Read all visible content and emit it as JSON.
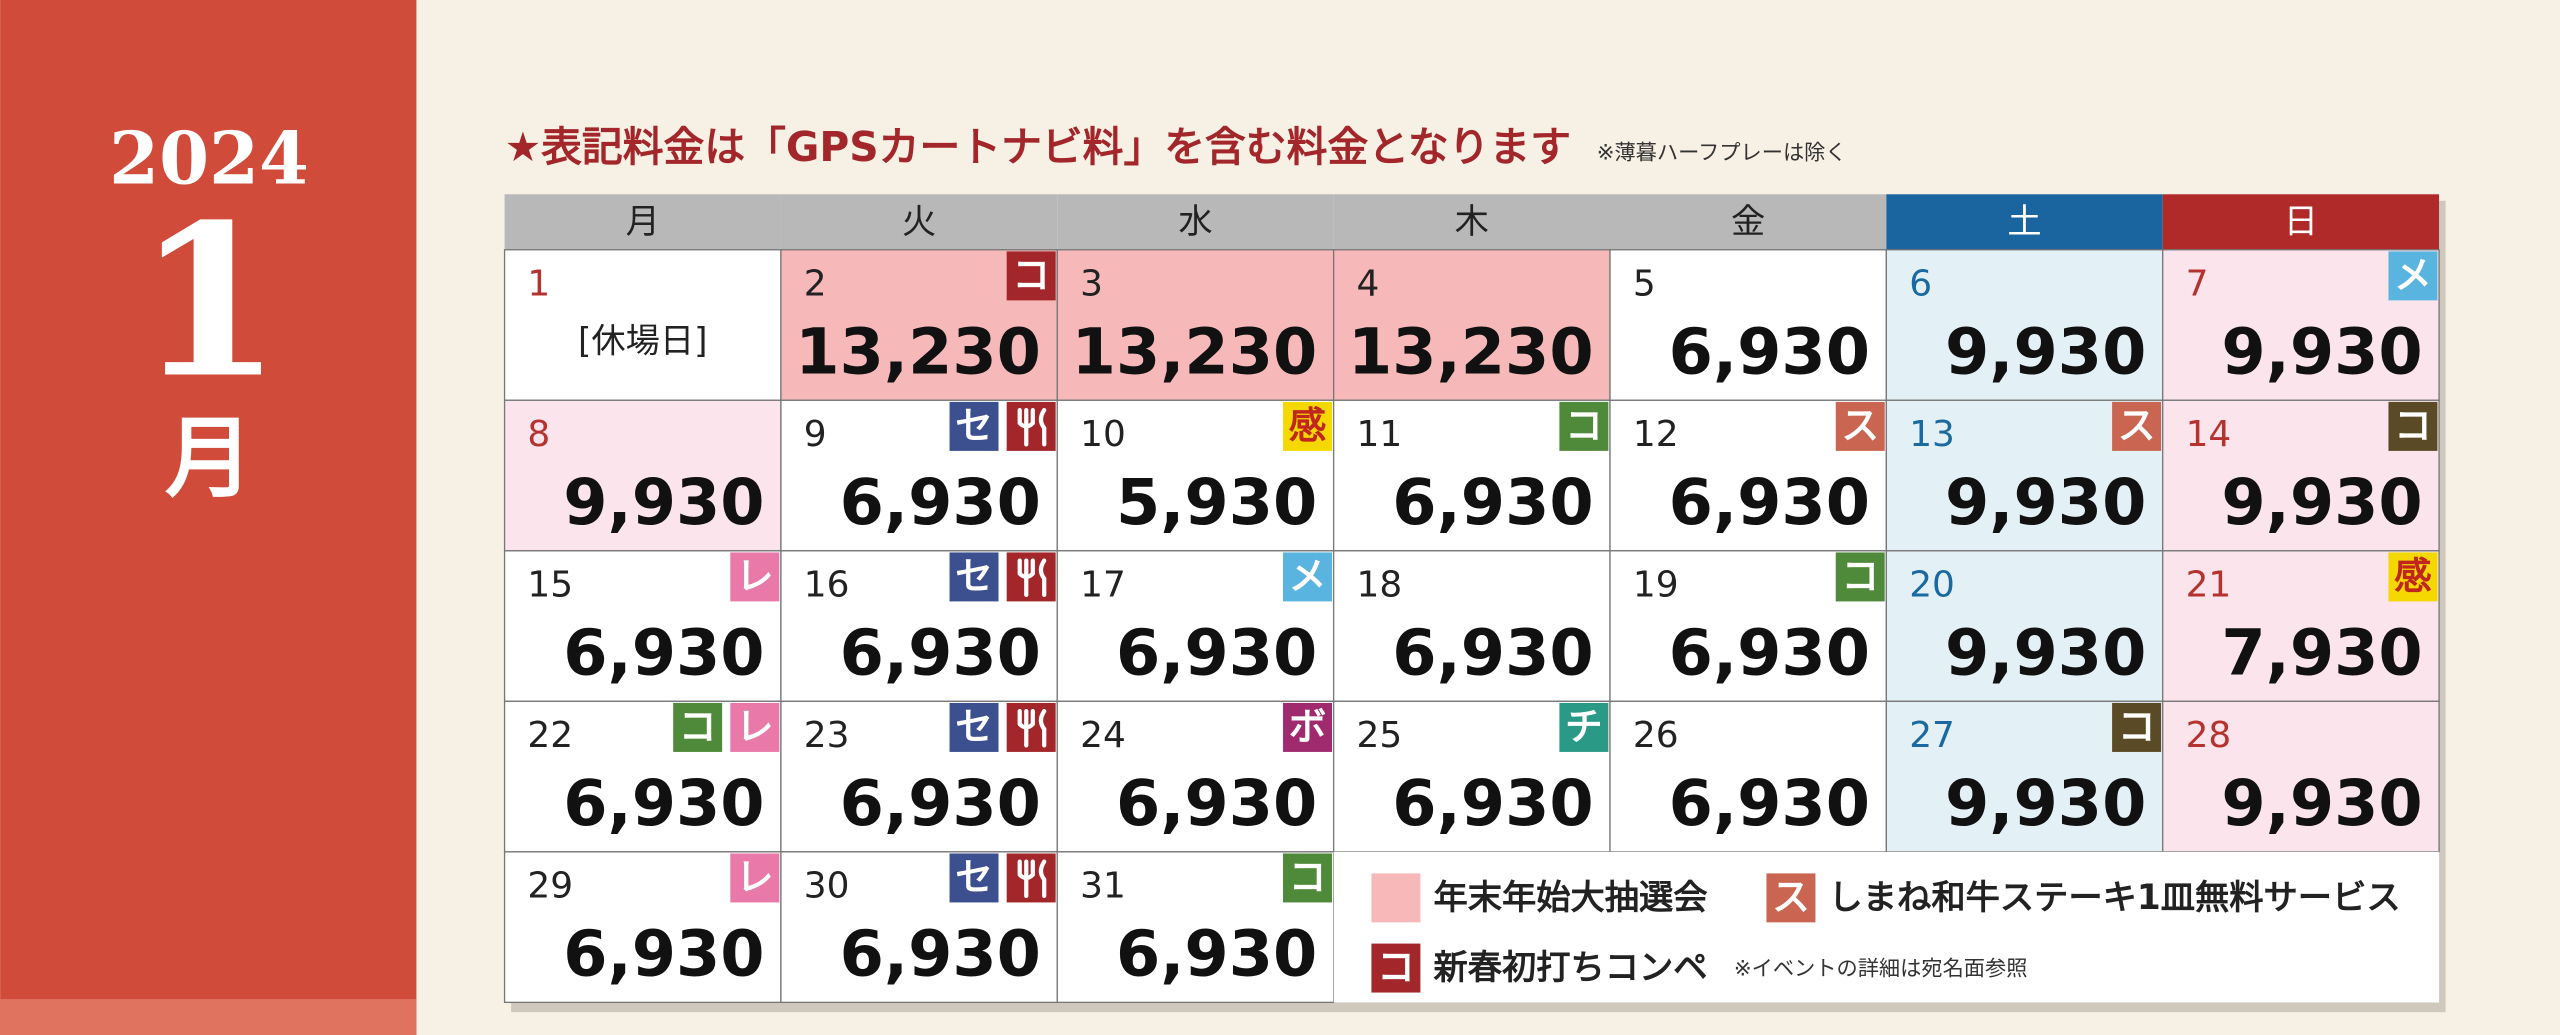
{
  "header": {
    "year": "2024",
    "month": "1",
    "month_suffix": "月"
  },
  "notice": {
    "text": "★表記料金は「GPSカートナビ料」を含む料金となります",
    "note": "※薄暮ハーフプレーは除く"
  },
  "weekdays": [
    {
      "label": "月",
      "color": "#b8b8b8",
      "text_color": "#222222"
    },
    {
      "label": "火",
      "color": "#b8b8b8",
      "text_color": "#222222"
    },
    {
      "label": "水",
      "color": "#b8b8b8",
      "text_color": "#222222"
    },
    {
      "label": "木",
      "color": "#b8b8b8",
      "text_color": "#222222"
    },
    {
      "label": "金",
      "color": "#b8b8b8",
      "text_color": "#222222"
    },
    {
      "label": "土",
      "color": "#1a64a0",
      "text_color": "#ffffff"
    },
    {
      "label": "日",
      "color": "#b02a2a",
      "text_color": "#ffffff"
    }
  ],
  "days": [
    {
      "day": "1",
      "note": "[休場日]",
      "bg": "#ffffff",
      "day_color": "#b5332e",
      "badges": []
    },
    {
      "day": "2",
      "price": "13,230",
      "bg": "#f6b8b8",
      "day_color": "#222222",
      "badges": [
        {
          "text": "コ",
          "color": "#a3272a"
        }
      ]
    },
    {
      "day": "3",
      "price": "13,230",
      "bg": "#f6b8b8",
      "day_color": "#222222",
      "badges": []
    },
    {
      "day": "4",
      "price": "13,230",
      "bg": "#f6b8b8",
      "day_color": "#222222",
      "badges": []
    },
    {
      "day": "5",
      "price": "6,930",
      "bg": "#ffffff",
      "day_color": "#222222",
      "badges": []
    },
    {
      "day": "6",
      "price": "9,930",
      "bg": "#e3f0f6",
      "day_color": "#1a6aa0",
      "badges": []
    },
    {
      "day": "7",
      "price": "9,930",
      "bg": "#fce4ec",
      "day_color": "#b5332e",
      "badges": [
        {
          "text": "メ",
          "color": "#5ab4e0"
        }
      ]
    },
    {
      "day": "8",
      "price": "9,930",
      "bg": "#fce4ec",
      "day_color": "#b5332e",
      "badges": []
    },
    {
      "day": "9",
      "price": "6,930",
      "bg": "#ffffff",
      "day_color": "#222222",
      "badges": [
        {
          "text": "セ",
          "color": "#3c4f8e"
        },
        {
          "icon": "fork",
          "color": "#a3272a"
        }
      ]
    },
    {
      "day": "10",
      "price": "5,930",
      "bg": "#ffffff",
      "day_color": "#222222",
      "badges": [
        {
          "text": "感",
          "color": "#f5d800",
          "text_color": "#c0261e"
        }
      ]
    },
    {
      "day": "11",
      "price": "6,930",
      "bg": "#ffffff",
      "day_color": "#222222",
      "badges": [
        {
          "text": "コ",
          "color": "#4f8a3a"
        }
      ]
    },
    {
      "day": "12",
      "price": "6,930",
      "bg": "#ffffff",
      "day_color": "#222222",
      "badges": [
        {
          "text": "ス",
          "color": "#c96550"
        }
      ]
    },
    {
      "day": "13",
      "price": "9,930",
      "bg": "#e3f0f6",
      "day_color": "#1a6aa0",
      "badges": [
        {
          "text": "ス",
          "color": "#c96550"
        }
      ]
    },
    {
      "day": "14",
      "price": "9,930",
      "bg": "#fce4ec",
      "day_color": "#b5332e",
      "badges": [
        {
          "text": "コ",
          "color": "#5a4a26"
        }
      ]
    },
    {
      "day": "15",
      "price": "6,930",
      "bg": "#ffffff",
      "day_color": "#222222",
      "badges": [
        {
          "text": "レ",
          "color": "#e879a8"
        }
      ]
    },
    {
      "day": "16",
      "price": "6,930",
      "bg": "#ffffff",
      "day_color": "#222222",
      "badges": [
        {
          "text": "セ",
          "color": "#3c4f8e"
        },
        {
          "icon": "fork",
          "color": "#a3272a"
        }
      ]
    },
    {
      "day": "17",
      "price": "6,930",
      "bg": "#ffffff",
      "day_color": "#222222",
      "badges": [
        {
          "text": "メ",
          "color": "#5ab4e0"
        }
      ]
    },
    {
      "day": "18",
      "price": "6,930",
      "bg": "#ffffff",
      "day_color": "#222222",
      "badges": []
    },
    {
      "day": "19",
      "price": "6,930",
      "bg": "#ffffff",
      "day_color": "#222222",
      "badges": [
        {
          "text": "コ",
          "color": "#4f8a3a"
        }
      ]
    },
    {
      "day": "20",
      "price": "9,930",
      "bg": "#e3f0f6",
      "day_color": "#1a6aa0",
      "badges": []
    },
    {
      "day": "21",
      "price": "7,930",
      "bg": "#fce4ec",
      "day_color": "#b5332e",
      "badges": [
        {
          "text": "感",
          "color": "#f5d800",
          "text_color": "#c0261e"
        }
      ]
    },
    {
      "day": "22",
      "price": "6,930",
      "bg": "#ffffff",
      "day_color": "#222222",
      "badges": [
        {
          "text": "コ",
          "color": "#4f8a3a"
        },
        {
          "text": "レ",
          "color": "#e879a8"
        }
      ]
    },
    {
      "day": "23",
      "price": "6,930",
      "bg": "#ffffff",
      "day_color": "#222222",
      "badges": [
        {
          "text": "セ",
          "color": "#3c4f8e"
        },
        {
          "icon": "fork",
          "color": "#a3272a"
        }
      ]
    },
    {
      "day": "24",
      "price": "6,930",
      "bg": "#ffffff",
      "day_color": "#222222",
      "badges": [
        {
          "text": "ボ",
          "color": "#a02a6e"
        }
      ]
    },
    {
      "day": "25",
      "price": "6,930",
      "bg": "#ffffff",
      "day_color": "#222222",
      "badges": [
        {
          "text": "チ",
          "color": "#2a9a86"
        }
      ]
    },
    {
      "day": "26",
      "price": "6,930",
      "bg": "#ffffff",
      "day_color": "#222222",
      "badges": []
    },
    {
      "day": "27",
      "price": "9,930",
      "bg": "#e3f0f6",
      "day_color": "#1a6aa0",
      "badges": [
        {
          "text": "コ",
          "color": "#5a4a26"
        }
      ]
    },
    {
      "day": "28",
      "price": "9,930",
      "bg": "#fce4ec",
      "day_color": "#b5332e",
      "badges": []
    },
    {
      "day": "29",
      "price": "6,930",
      "bg": "#ffffff",
      "day_color": "#222222",
      "badges": [
        {
          "text": "レ",
          "color": "#e879a8"
        }
      ]
    },
    {
      "day": "30",
      "price": "6,930",
      "bg": "#ffffff",
      "day_color": "#222222",
      "badges": [
        {
          "text": "セ",
          "color": "#3c4f8e"
        },
        {
          "icon": "fork",
          "color": "#a3272a"
        }
      ]
    },
    {
      "day": "31",
      "price": "6,930",
      "bg": "#ffffff",
      "day_color": "#222222",
      "badges": [
        {
          "text": "コ",
          "color": "#4f8a3a"
        }
      ]
    }
  ],
  "legend": {
    "items": [
      {
        "label": "年末年始大抽選会",
        "color": "#f6b8b8"
      },
      {
        "badge": "ス",
        "label": "しまね和牛ステーキ1皿無料サービス",
        "color": "#c96550"
      },
      {
        "badge": "コ",
        "label": "新春初打ちコンペ",
        "color": "#a3272a"
      }
    ],
    "note": "※イベントの詳細は宛名面参照"
  }
}
